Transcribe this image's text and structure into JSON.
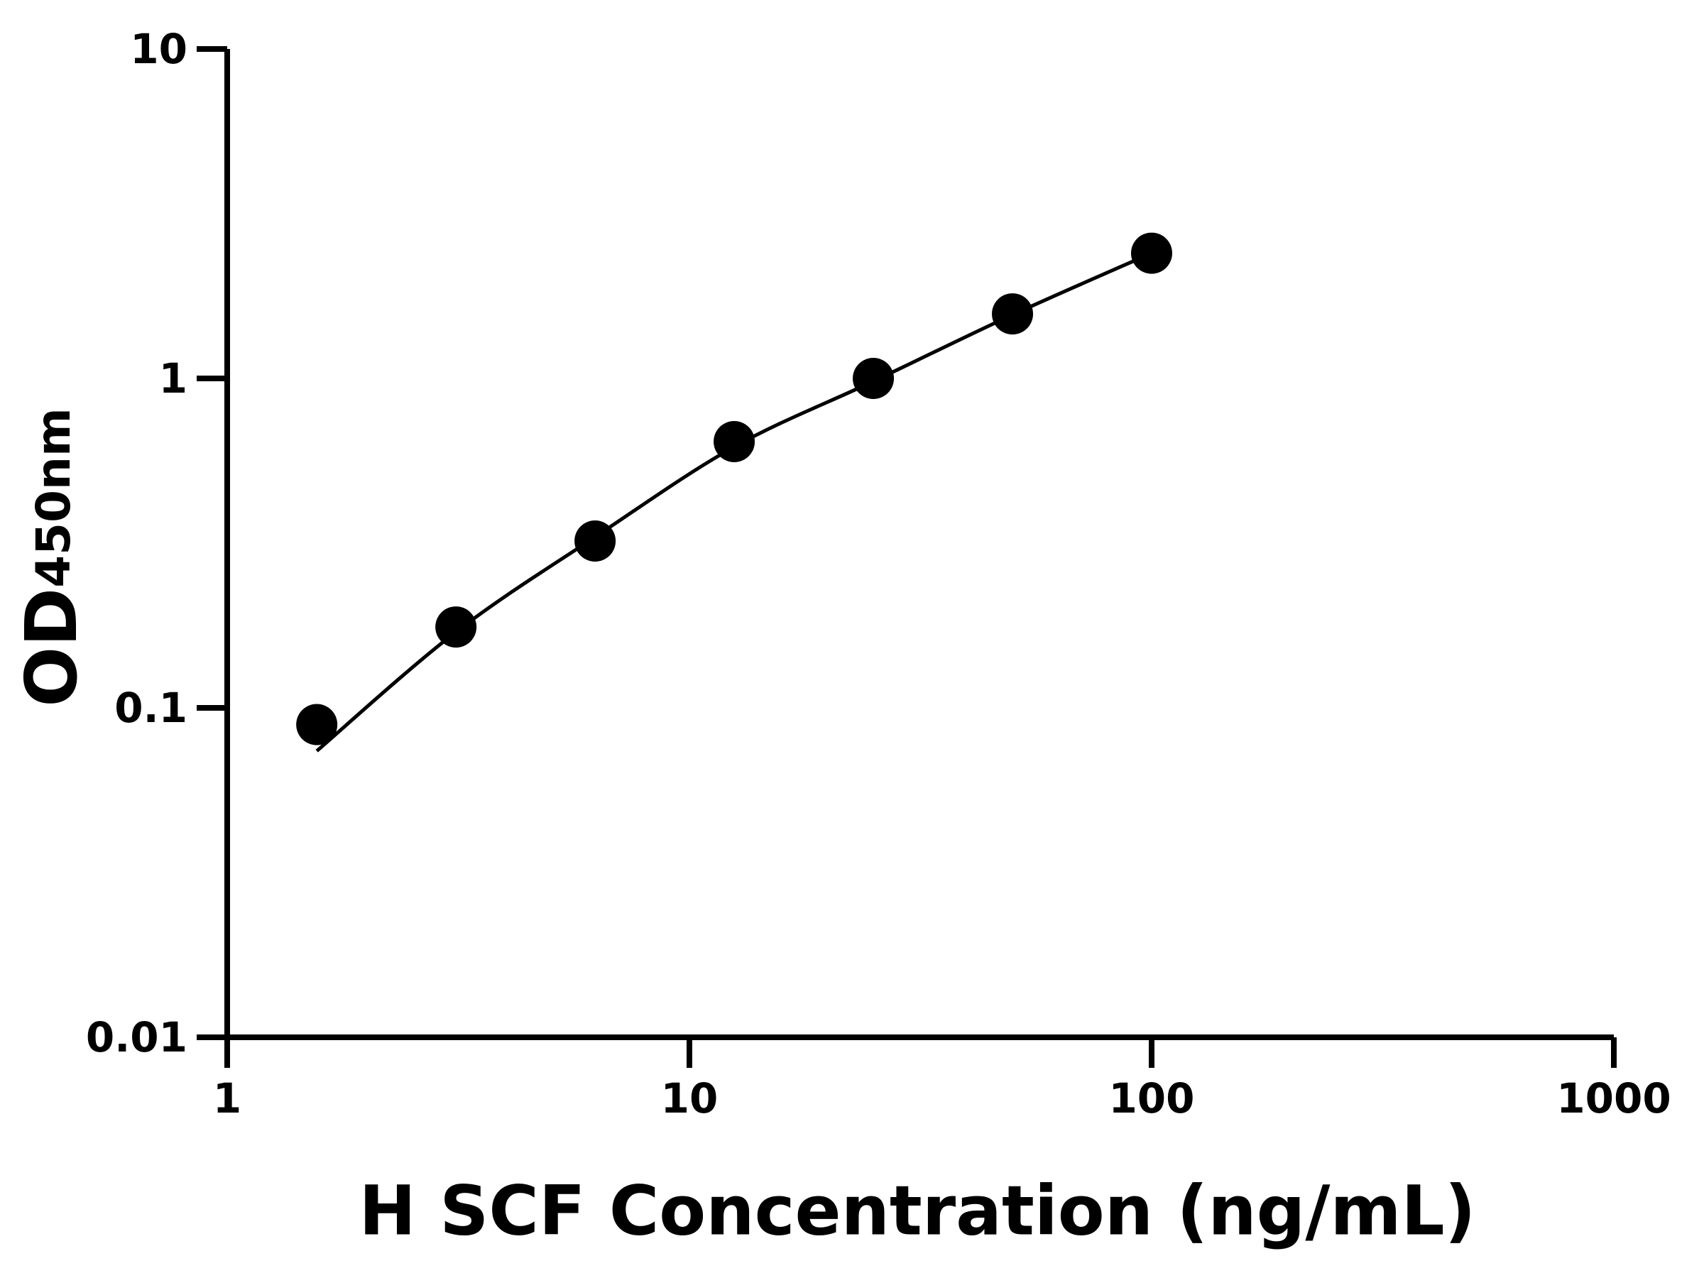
{
  "chart_data": {
    "type": "scatter",
    "xlabel": "H SCF Concentration (ng/mL)",
    "ylabel": "OD",
    "ylabel_sub": "450nm",
    "xscale": "log",
    "yscale": "log",
    "xlim": [
      1,
      1000
    ],
    "ylim": [
      0.01,
      10
    ],
    "xticks": [
      1,
      10,
      100,
      1000
    ],
    "yticks": [
      0.01,
      0.1,
      1,
      10
    ],
    "series": [
      {
        "style": "points",
        "color": "#000000",
        "x": [
          1.5625,
          3.125,
          6.25,
          12.5,
          25,
          50,
          100
        ],
        "values": [
          0.089,
          0.176,
          0.321,
          0.643,
          1.0,
          1.57,
          2.4
        ]
      },
      {
        "style": "line",
        "color": "#000000",
        "x": [
          1.5625,
          3.125,
          6.25,
          12.5,
          25,
          50,
          100
        ],
        "values": [
          0.074,
          0.17,
          0.33,
          0.62,
          0.98,
          1.56,
          2.4
        ]
      }
    ]
  }
}
